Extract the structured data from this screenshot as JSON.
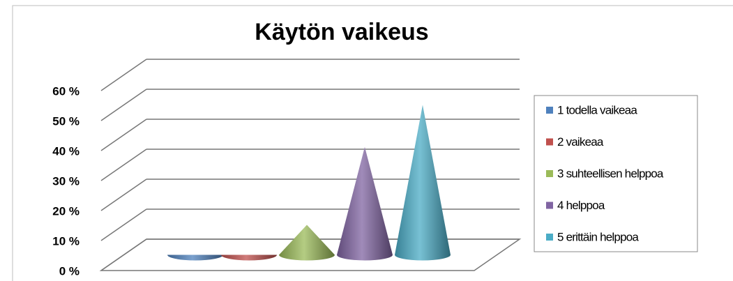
{
  "chart_data": {
    "type": "cone",
    "title": "Käytön vaikeus",
    "series": [
      {
        "name": "1 todella vaikeaa",
        "color": "#4f81bd",
        "values": [
          0
        ]
      },
      {
        "name": "2 vaikeaa",
        "color": "#c0504d",
        "values": [
          0
        ]
      },
      {
        "name": "3 suhteellisen helppoa",
        "color": "#9bbb59",
        "values": [
          10
        ]
      },
      {
        "name": "4 helppoa",
        "color": "#8064a2",
        "values": [
          36
        ]
      },
      {
        "name": "5 erittäin helppoa",
        "color": "#4bacc6",
        "values": [
          50
        ]
      }
    ],
    "ylim": [
      0,
      60
    ],
    "yticks": [
      {
        "value": 0,
        "label": "0 %"
      },
      {
        "value": 10,
        "label": "10 %"
      },
      {
        "value": 20,
        "label": "20 %"
      },
      {
        "value": 30,
        "label": "30 %"
      },
      {
        "value": 40,
        "label": "40 %"
      },
      {
        "value": 50,
        "label": "50 %"
      },
      {
        "value": 60,
        "label": "60 %"
      }
    ],
    "grid": true,
    "legend": "right"
  }
}
